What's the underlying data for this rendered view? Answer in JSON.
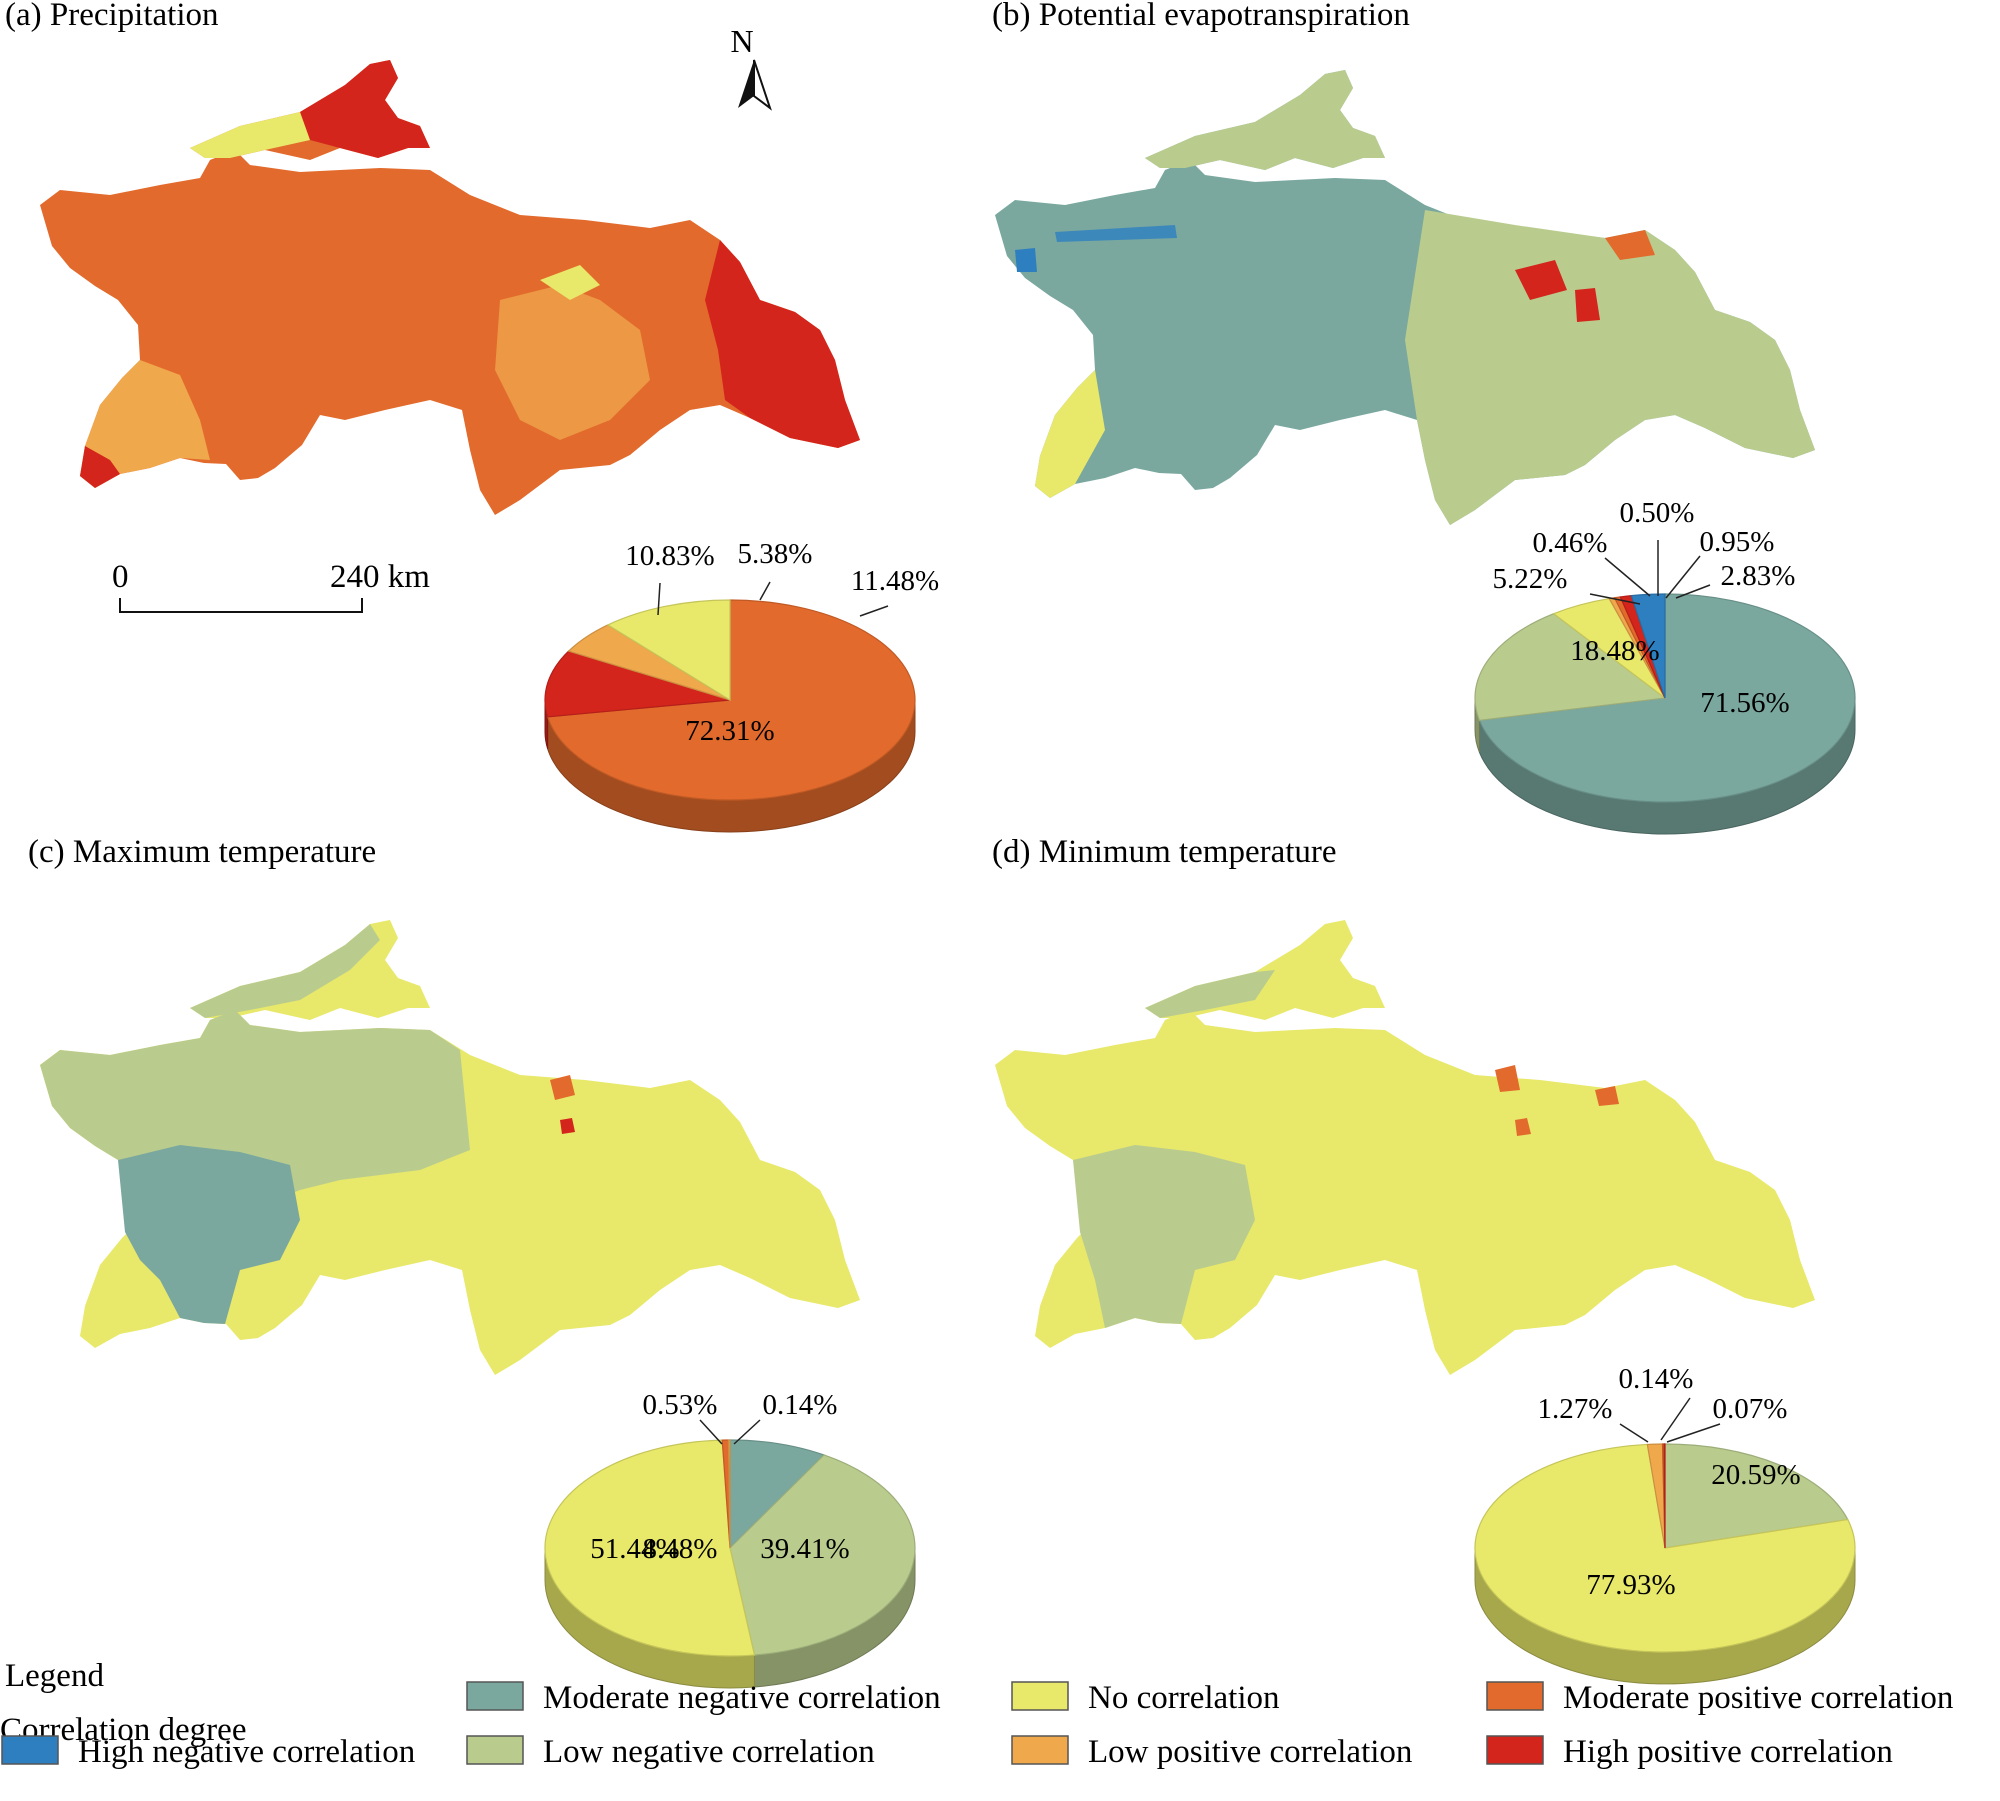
{
  "colors": {
    "high_negative": "#2e7fc0",
    "moderate_negative": "#7aa89f",
    "low_negative": "#b9cc8e",
    "no_correlation": "#e8e86a",
    "low_positive": "#f0a84c",
    "moderate_positive": "#e26a2c",
    "high_positive": "#d4251d"
  },
  "panels": [
    {
      "id": "a",
      "title": "(a) Precipitation",
      "pie": [
        {
          "category": "moderate_positive",
          "value": 72.31,
          "label": "72.31%"
        },
        {
          "category": "high_positive",
          "value": 10.83,
          "label": "10.83%"
        },
        {
          "category": "low_positive",
          "value": 5.38,
          "label": "5.38%"
        },
        {
          "category": "no_correlation",
          "value": 11.48,
          "label": "11.48%"
        }
      ]
    },
    {
      "id": "b",
      "title": "(b) Potential evapotranspiration",
      "pie": [
        {
          "category": "moderate_negative",
          "value": 71.56,
          "label": "71.56%"
        },
        {
          "category": "low_negative",
          "value": 18.48,
          "label": "18.48%"
        },
        {
          "category": "no_correlation",
          "value": 5.22,
          "label": "5.22%"
        },
        {
          "category": "low_positive",
          "value": 0.46,
          "label": "0.46%"
        },
        {
          "category": "moderate_positive",
          "value": 0.5,
          "label": "0.50%"
        },
        {
          "category": "high_positive",
          "value": 0.95,
          "label": "0.95%"
        },
        {
          "category": "high_negative",
          "value": 2.83,
          "label": "2.83%"
        }
      ]
    },
    {
      "id": "c",
      "title": "(c) Maximum temperature",
      "pie": [
        {
          "category": "moderate_negative",
          "value": 8.48,
          "label": "8.48%"
        },
        {
          "category": "low_negative",
          "value": 39.41,
          "label": "39.41%"
        },
        {
          "category": "no_correlation",
          "value": 51.44,
          "label": "51.44%"
        },
        {
          "category": "moderate_positive",
          "value": 0.53,
          "label": "0.53%"
        },
        {
          "category": "low_positive",
          "value": 0.14,
          "label": "0.14%"
        }
      ]
    },
    {
      "id": "d",
      "title": "(d) Minimum temperature",
      "pie": [
        {
          "category": "low_negative",
          "value": 20.59,
          "label": "20.59%"
        },
        {
          "category": "no_correlation",
          "value": 77.93,
          "label": "77.93%"
        },
        {
          "category": "low_positive",
          "value": 1.27,
          "label": "1.27%"
        },
        {
          "category": "moderate_positive",
          "value": 0.14,
          "label": "0.14%"
        },
        {
          "category": "high_positive",
          "value": 0.07,
          "label": "0.07%"
        }
      ]
    }
  ],
  "north_arrow": {
    "label": "N"
  },
  "scale_bar": {
    "start_label": "0",
    "end_label": "240 km"
  },
  "legend": {
    "title": "Legend",
    "subtitle": "Correlation degree",
    "items": [
      {
        "category": "high_negative",
        "label": "High negative correlation"
      },
      {
        "category": "moderate_negative",
        "label": "Moderate negative correlation"
      },
      {
        "category": "low_negative",
        "label": "Low negative correlation"
      },
      {
        "category": "no_correlation",
        "label": "No correlation"
      },
      {
        "category": "low_positive",
        "label": "Low positive correlation"
      },
      {
        "category": "moderate_positive",
        "label": "Moderate positive correlation"
      },
      {
        "category": "high_positive",
        "label": "High positive correlation"
      }
    ]
  }
}
